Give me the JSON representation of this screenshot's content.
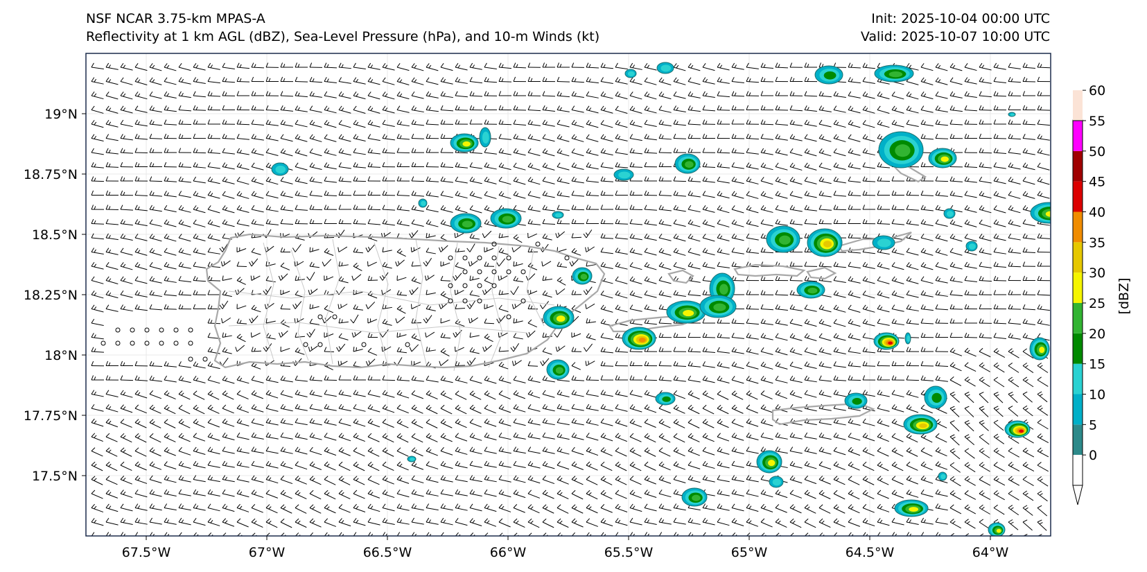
{
  "header": {
    "model_line": "NSF NCAR 3.75-km MPAS-A",
    "fields_line": "Reflectivity at 1 km AGL (dBZ), Sea-Level Pressure (hPa), and 10-m Winds (kt)",
    "init_line": "Init: 2025-10-04 00:00 UTC",
    "valid_line": "Valid: 2025-10-07 10:00 UTC"
  },
  "map": {
    "lon_range": [
      -67.75,
      -63.75
    ],
    "lat_range": [
      17.25,
      19.25
    ],
    "lat_ticks": [
      {
        "value": 19.0,
        "label": "19°N"
      },
      {
        "value": 18.75,
        "label": "18.75°N"
      },
      {
        "value": 18.5,
        "label": "18.5°N"
      },
      {
        "value": 18.25,
        "label": "18.25°N"
      },
      {
        "value": 18.0,
        "label": "18°N"
      },
      {
        "value": 17.75,
        "label": "17.75°N"
      },
      {
        "value": 17.5,
        "label": "17.5°N"
      }
    ],
    "lon_ticks": [
      {
        "value": -67.5,
        "label": "67.5°W"
      },
      {
        "value": -67.0,
        "label": "67°W"
      },
      {
        "value": -66.5,
        "label": "66.5°W"
      },
      {
        "value": -66.0,
        "label": "66°W"
      },
      {
        "value": -65.5,
        "label": "65.5°W"
      },
      {
        "value": -65.0,
        "label": "65°W"
      },
      {
        "value": -64.5,
        "label": "64.5°W"
      },
      {
        "value": -64.0,
        "label": "64°W"
      }
    ],
    "coastline_color": "#a8a8a8",
    "municipal_border_color": "#c8c8c8",
    "wind_barb_color": "#000000"
  },
  "colorbar": {
    "label": "[dBZ]",
    "levels": [
      {
        "value": "0",
        "color": "#2d8a8a"
      },
      {
        "value": "5",
        "color": "#00b0c8"
      },
      {
        "value": "10",
        "color": "#2ad2d2"
      },
      {
        "value": "15",
        "color": "#008a00"
      },
      {
        "value": "20",
        "color": "#32b432"
      },
      {
        "value": "25",
        "color": "#f5f500"
      },
      {
        "value": "30",
        "color": "#e6c800"
      },
      {
        "value": "35",
        "color": "#f08c00"
      },
      {
        "value": "40",
        "color": "#dc0000"
      },
      {
        "value": "45",
        "color": "#a00000"
      },
      {
        "value": "50",
        "color": "#ff00ff"
      },
      {
        "value": "55",
        "color": "#fbe3d6"
      },
      {
        "value": "60",
        "color": ""
      }
    ]
  }
}
